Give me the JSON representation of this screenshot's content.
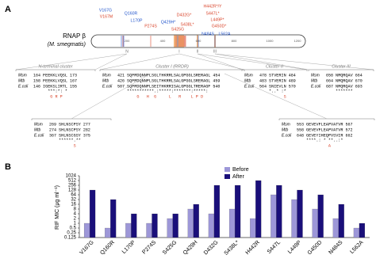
{
  "panel_a": {
    "label": "A",
    "protein": "RNAP β",
    "organism": "(M. smegmatis)",
    "scale": [
      "200",
      "400",
      "600",
      "800",
      "1000",
      "1200"
    ],
    "regions": [
      "N",
      "I",
      "II",
      "III"
    ],
    "mutations": [
      {
        "label": "V167G",
        "color": "#2255cc"
      },
      {
        "label": "V167M",
        "color": "#d9452b"
      },
      {
        "label": "Q160R",
        "color": "#2255cc"
      },
      {
        "label": "L170P",
        "color": "#2255cc"
      },
      {
        "label": "P274S",
        "color": "#d9452b"
      },
      {
        "label": "S425G",
        "color": "#d9452b"
      },
      {
        "label": "Q429H*",
        "color": "#2255cc"
      },
      {
        "label": "D432G*",
        "color": "#d9452b"
      },
      {
        "label": "S438L*",
        "color": "#d9452b"
      },
      {
        "label": "H442R*/Y",
        "color": "#d9452b"
      },
      {
        "label": "S447L*",
        "color": "#d9452b"
      },
      {
        "label": "L449P*",
        "color": "#d9452b"
      },
      {
        "label": "G450D*",
        "color": "#d9452b"
      },
      {
        "label": "N484S",
        "color": "#2255cc"
      },
      {
        "label": "L562A",
        "color": "#2255cc"
      }
    ],
    "clusters": [
      {
        "title": "N-terminal cluster",
        "rows": [
          [
            "Msm",
            "164",
            "FEEKKLVQSL",
            "173"
          ],
          [
            "Mtb",
            "158",
            "FEEKKLVQSL",
            "167"
          ],
          [
            "E.coli",
            "146",
            "IGEKSLIRTL",
            "155"
          ]
        ],
        "conservation": "  ***:*: *",
        "mutants": "   G R P"
      },
      {
        "title": "Cluster I (RRDR)",
        "rows": [
          [
            "Msm",
            "421",
            "SQFMDQNNPLSGLTHKRRLSALGPGGLSRERAGL",
            "454"
          ],
          [
            "Mtb",
            "426",
            "SQFMDQNNPLSGLTHKRRLSALGPGGLSRERAGL",
            "459"
          ],
          [
            "E.coli",
            "507",
            "SQFMDQNNPLSEITHKRRISALGPGGLTRERAGF",
            "540"
          ]
        ],
        "conservation": "***********.:*****:*******:*****:",
        "mutants": "    G   H  G     L   R    L P D"
      },
      {
        "title": "Cluster II",
        "rows": [
          [
            "Msm",
            "478",
            "STVERIN",
            "484"
          ],
          [
            "Mtb",
            "483",
            "STVERIN",
            "489"
          ],
          [
            "E.coli",
            "564",
            "SNIEVLN",
            "570"
          ]
        ],
        "conservation": "*..* :*",
        "mutants": "      S"
      },
      {
        "title": "Cluster III",
        "rows": [
          [
            "Msm",
            "658",
            "NMQRQAV",
            "664"
          ],
          [
            "Mtb",
            "664",
            "NMQRQAV",
            "670"
          ],
          [
            "E.coli",
            "687",
            "NMQRQAV",
            "693"
          ]
        ],
        "conservation": "*******",
        "mutants": ""
      },
      {
        "rows": [
          [
            "Msm",
            "269",
            "SHLNSCPSY",
            "277"
          ],
          [
            "Mtb",
            "274",
            "SHLNSCPSY",
            "282"
          ],
          [
            "E.coli",
            "367",
            "SHLNSCGSY",
            "375"
          ]
        ],
        "conservation": "******.**",
        "mutants": "      S"
      },
      {
        "rows": [
          [
            "Msm",
            "553",
            "GEVEVFLEAPVATVR",
            "567"
          ],
          [
            "Mtb",
            "558",
            "GEVEVFLEAPVATVR",
            "572"
          ],
          [
            "E.coli",
            "648",
            "GEVEYIHEQPVSVIR",
            "662"
          ]
        ],
        "conservation": "****.: * **..:*",
        "mutants": "         A"
      }
    ]
  },
  "chart_data": {
    "type": "bar",
    "panel_label": "B",
    "y_label": "RIF MIC (μg ml⁻¹)",
    "categories": [
      "V167G",
      "Q160R",
      "L170P",
      "P274S",
      "S425G",
      "Q429H",
      "D432G",
      "S438L*",
      "H442R",
      "S447L",
      "L449P",
      "G450D",
      "N484S",
      "L562A"
    ],
    "series": [
      {
        "name": "Before",
        "color": "#9d97d8",
        "values": [
          1,
          0.5,
          1,
          1,
          2,
          8,
          4,
          8,
          2,
          64,
          32,
          8,
          2,
          0.5
        ]
      },
      {
        "name": "After",
        "color": "#1a0f7a",
        "values": [
          128,
          32,
          4,
          4,
          4,
          16,
          256,
          256,
          512,
          256,
          128,
          64,
          16,
          1
        ]
      }
    ],
    "log_scale": true,
    "ylim": [
      0.125,
      1024
    ],
    "yticks": [
      0.125,
      0.25,
      0.5,
      1,
      2,
      4,
      8,
      16,
      32,
      64,
      128,
      256,
      512,
      1024
    ],
    "legend": "top-right"
  }
}
